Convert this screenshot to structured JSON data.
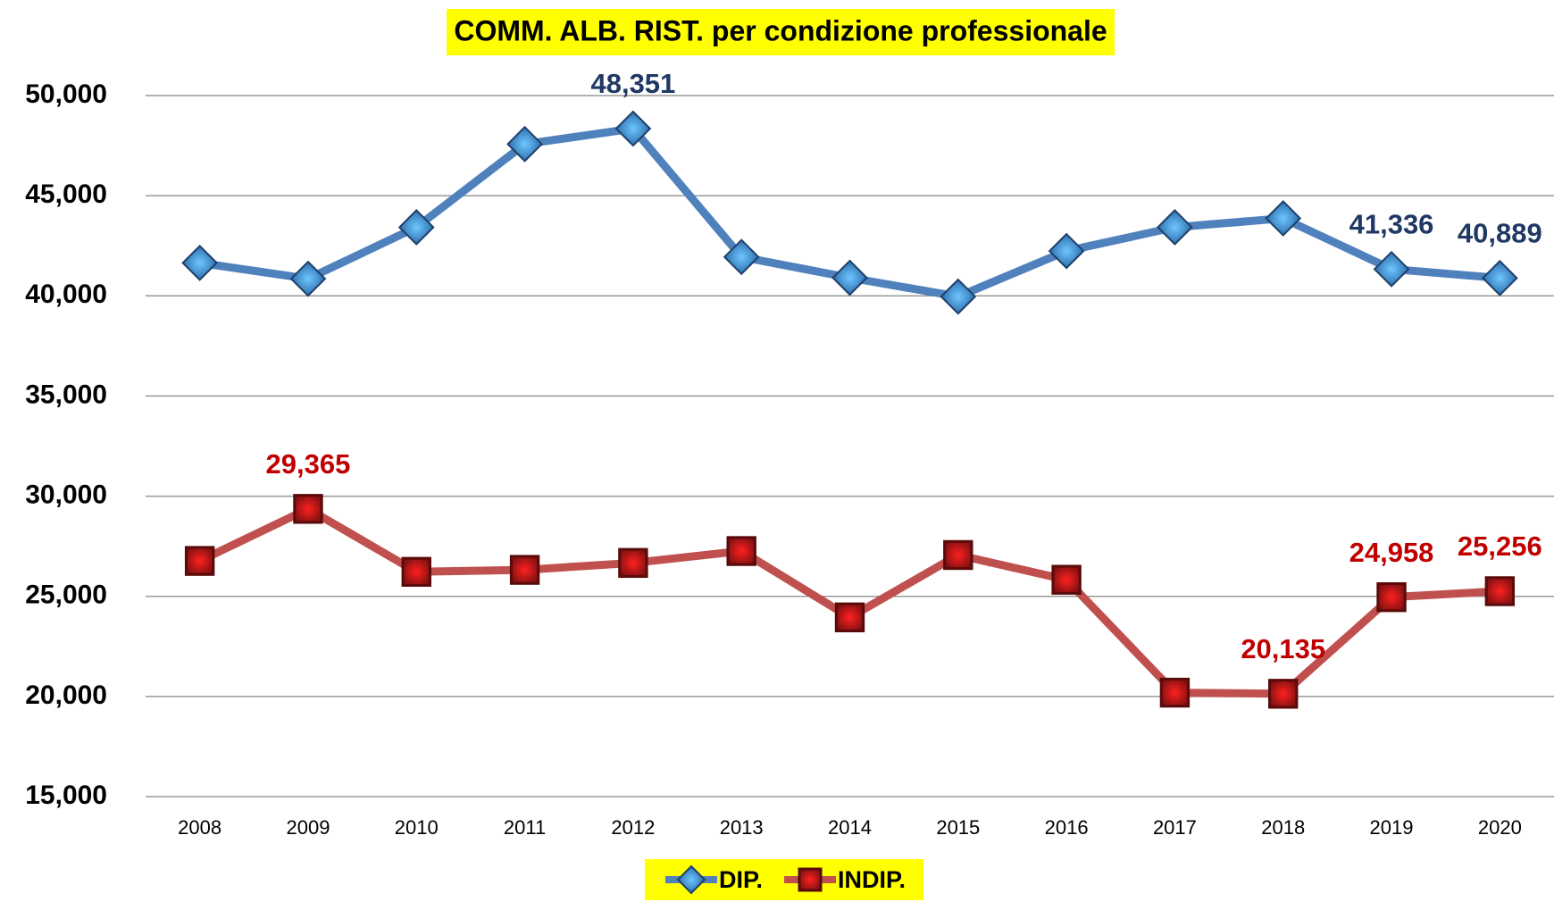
{
  "chart_data": {
    "type": "line",
    "title": "COMM. ALB. RIST. per condizione professionale",
    "categories": [
      "2008",
      "2009",
      "2010",
      "2011",
      "2012",
      "2013",
      "2014",
      "2015",
      "2016",
      "2017",
      "2018",
      "2019",
      "2020"
    ],
    "series": [
      {
        "name": "DIP.",
        "color": "#4f81bd",
        "label_color": "#1f3864",
        "marker": "diamond",
        "values": [
          41646,
          40855,
          43425,
          47578,
          48351,
          41942,
          40904,
          39965,
          42239,
          43425,
          43870,
          41336,
          40889
        ],
        "value_labels": [
          null,
          null,
          null,
          null,
          "48,351",
          null,
          null,
          null,
          null,
          null,
          null,
          "41,336",
          "40,889"
        ]
      },
      {
        "name": "INDIP.",
        "color": "#c0504d",
        "label_color": "#c00000",
        "marker": "square",
        "values": [
          26766,
          29365,
          26222,
          26321,
          26667,
          27260,
          23948,
          27062,
          25826,
          20191,
          20135,
          24958,
          25256
        ],
        "value_labels": [
          null,
          "29,365",
          null,
          null,
          null,
          null,
          null,
          null,
          null,
          null,
          "20,135",
          "24,958",
          "25,256"
        ]
      }
    ],
    "ylim": [
      15000,
      50000
    ],
    "yticks": [
      {
        "value": 15000,
        "label": "15,000"
      },
      {
        "value": 20000,
        "label": "20,000"
      },
      {
        "value": 25000,
        "label": "25,000"
      },
      {
        "value": 30000,
        "label": "30,000"
      },
      {
        "value": 35000,
        "label": "35,000"
      },
      {
        "value": 40000,
        "label": "40,000"
      },
      {
        "value": 45000,
        "label": "45,000"
      },
      {
        "value": 50000,
        "label": "50,000"
      }
    ],
    "grid": true,
    "legend": "bottom"
  }
}
